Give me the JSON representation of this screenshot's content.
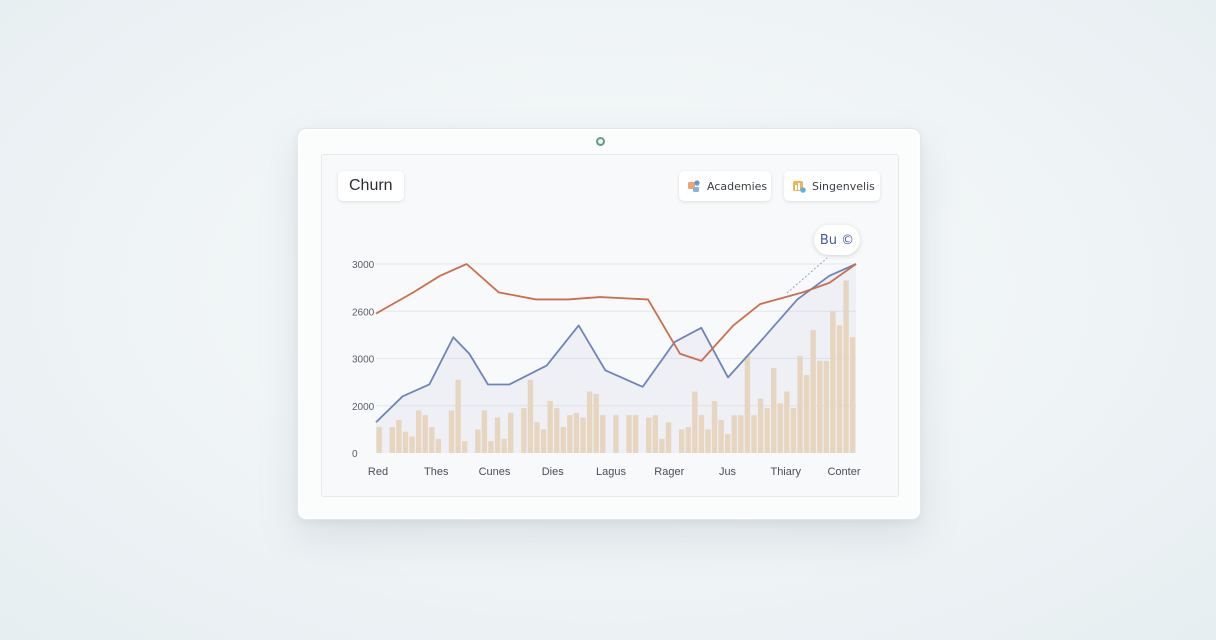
{
  "header": {
    "title": "Churn",
    "filters": [
      {
        "label": "Academies",
        "icon": "puzzle-icon"
      },
      {
        "label": "Singenvelis",
        "icon": "folder-chart-icon"
      }
    ]
  },
  "callout": {
    "label": "Bu ©"
  },
  "colors": {
    "line_a": "#cc6e4d",
    "line_b": "#6f84b8",
    "bars": "#f0d9bb",
    "grid": "#e4e7ea"
  },
  "chart_data": {
    "type": "bar+line",
    "x_labels": [
      "Red",
      "Thes",
      "Cunes",
      "Dies",
      "Lagus",
      "Rager",
      "Jus",
      "Thiary",
      "Conter"
    ],
    "y_tick_labels": [
      "0",
      "2000",
      "3000",
      "2600",
      "3000"
    ],
    "y_tick_values": [
      0,
      1,
      2,
      3,
      4
    ],
    "ylim": [
      0,
      4
    ],
    "grid": true,
    "bars": [
      0.55,
      0.0,
      0.55,
      0.7,
      0.45,
      0.35,
      0.9,
      0.8,
      0.55,
      0.3,
      0.0,
      0.9,
      1.55,
      0.25,
      0.0,
      0.5,
      0.9,
      0.25,
      0.75,
      0.3,
      0.85,
      0.0,
      0.95,
      1.55,
      0.65,
      0.5,
      1.1,
      0.95,
      0.55,
      0.8,
      0.85,
      0.75,
      1.3,
      1.25,
      0.8,
      0.0,
      0.8,
      0.0,
      0.8,
      0.8,
      0.0,
      0.75,
      0.8,
      0.3,
      0.65,
      0.0,
      0.5,
      0.55,
      1.3,
      0.8,
      0.5,
      1.1,
      0.7,
      0.4,
      0.8,
      0.8,
      2.05,
      0.8,
      1.15,
      0.95,
      1.8,
      1.05,
      1.3,
      0.95,
      2.05,
      1.65,
      2.6,
      1.95,
      1.95,
      3.0,
      2.7,
      3.65,
      2.45
    ],
    "series": [
      {
        "x": [
          0,
          0.7,
          1.2,
          1.7,
          2.3,
          3.0,
          3.6,
          4.2,
          5.1,
          5.7,
          6.1,
          6.7,
          7.2,
          8.0,
          8.5,
          9.0
        ],
        "y": [
          2.95,
          3.4,
          3.75,
          4.0,
          3.4,
          3.25,
          3.25,
          3.3,
          3.25,
          2.1,
          1.95,
          2.7,
          3.15,
          3.4,
          3.6,
          4.0
        ]
      },
      {
        "x": [
          0,
          0.5,
          1.0,
          1.45,
          1.75,
          2.1,
          2.5,
          3.2,
          3.8,
          4.3,
          5.0,
          5.6,
          6.1,
          6.6,
          7.2,
          7.9,
          8.5,
          9.0
        ],
        "y": [
          0.65,
          1.2,
          1.45,
          2.45,
          2.1,
          1.45,
          1.45,
          1.85,
          2.7,
          1.75,
          1.4,
          2.35,
          2.65,
          1.6,
          2.35,
          3.25,
          3.75,
          4.0
        ]
      }
    ]
  }
}
